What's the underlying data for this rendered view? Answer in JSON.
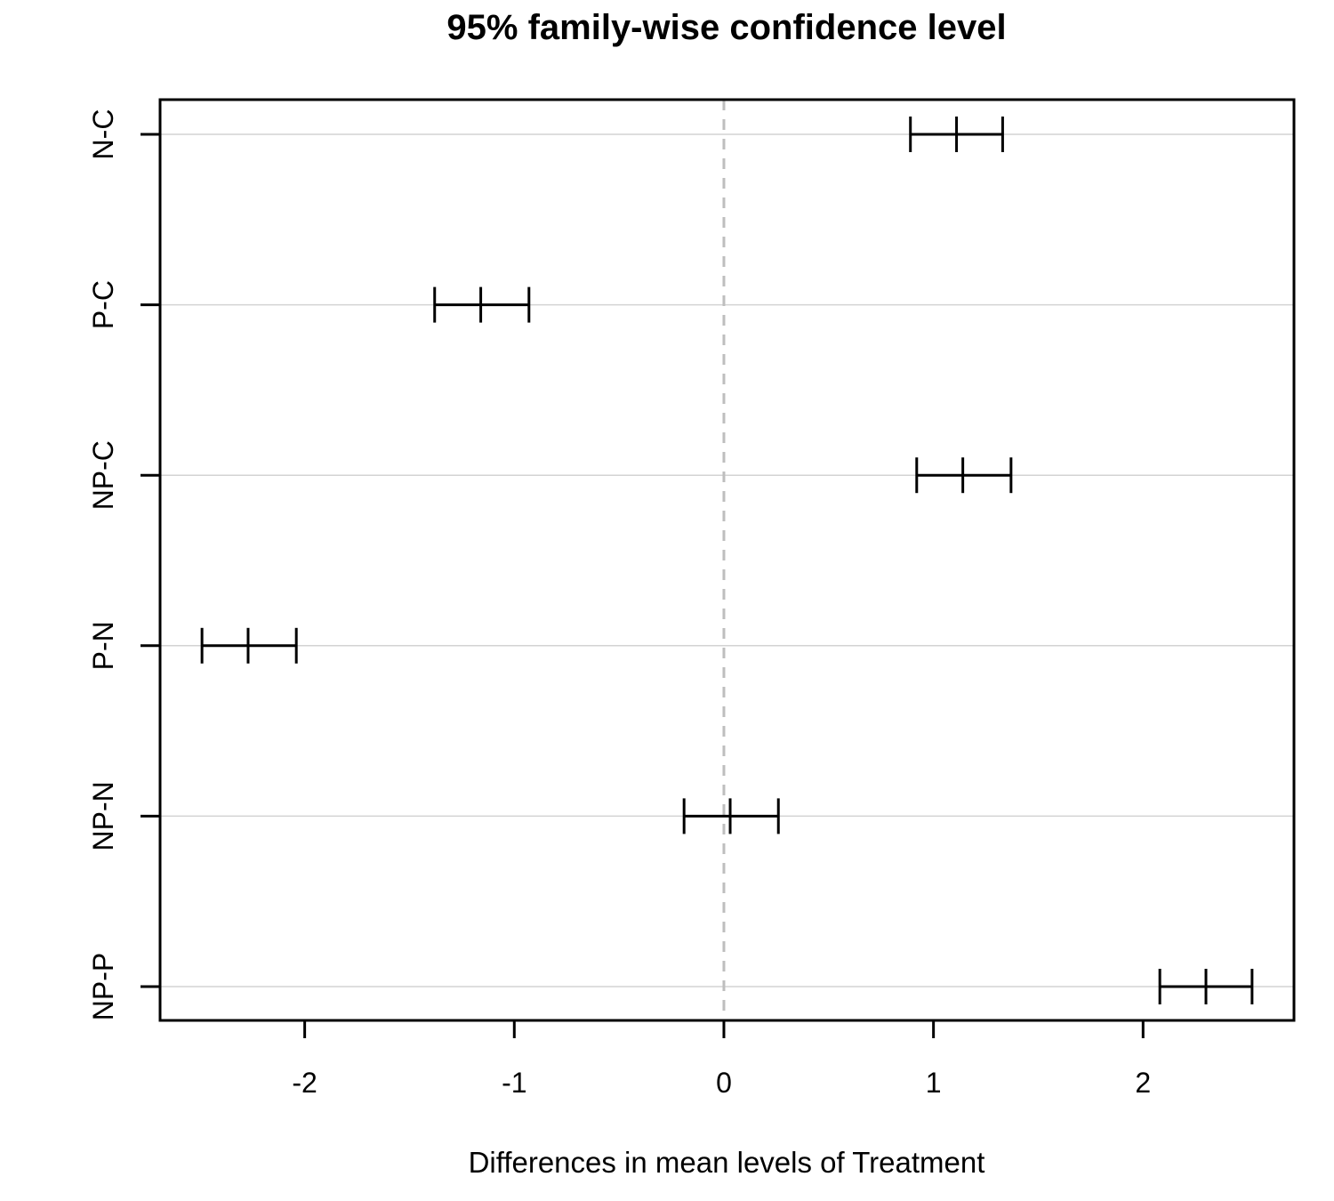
{
  "chart_data": {
    "type": "errorbar",
    "title": "95% family-wise confidence level",
    "xlabel": "Differences in mean levels of Treatment",
    "ylabel": "",
    "xlim": [
      -2.69,
      2.72
    ],
    "x_ticks": [
      -2,
      -1,
      0,
      1,
      2
    ],
    "x_tick_labels": [
      "-2",
      "-1",
      "0",
      "1",
      "2"
    ],
    "categories": [
      "N-C",
      "P-C",
      "NP-C",
      "P-N",
      "NP-N",
      "NP-P"
    ],
    "series": [
      {
        "diff": [
          1.11,
          -1.16,
          1.14,
          -2.27,
          0.03,
          2.3
        ],
        "lower": [
          0.89,
          -1.38,
          0.92,
          -2.49,
          -0.19,
          2.08
        ],
        "upper": [
          1.33,
          -0.93,
          1.37,
          -2.04,
          0.26,
          2.52
        ]
      }
    ],
    "reference_line": {
      "x": 0,
      "style": "dashed",
      "color": "#bebebe"
    },
    "grid": true,
    "grid_color": "#d3d3d3",
    "line_color": "#000000"
  }
}
